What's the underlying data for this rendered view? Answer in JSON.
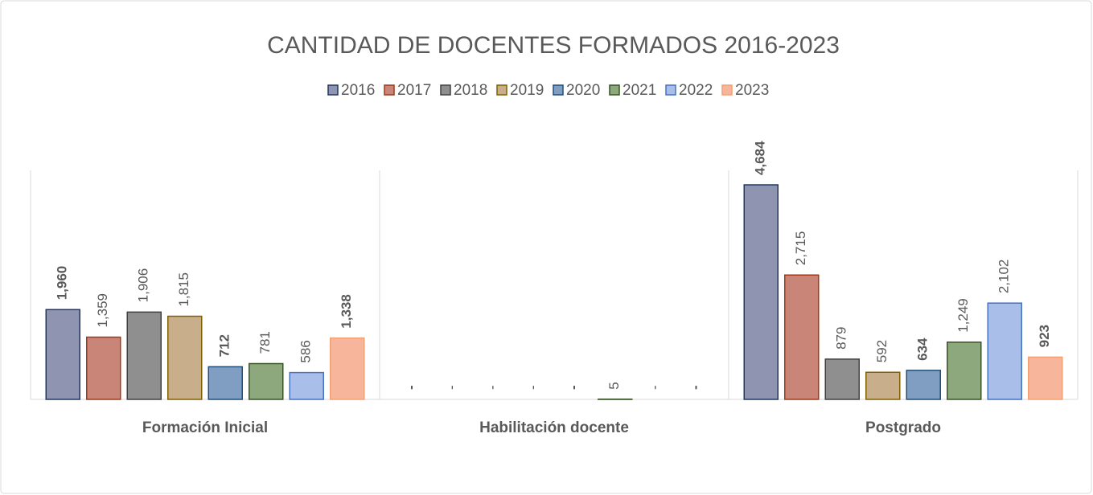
{
  "chart_data": {
    "type": "bar",
    "title": "CANTIDAD DE DOCENTES FORMADOS 2016-2023",
    "categories": [
      "Formación Inicial",
      "Habilitación docente",
      "Postgrado"
    ],
    "series": [
      {
        "name": "2016",
        "color": "#8f95b0",
        "edge": "#1f3864",
        "label_weight": "bold",
        "values": [
          1960,
          0,
          4684
        ],
        "value_labels": [
          "1,960",
          "-",
          "4,684"
        ]
      },
      {
        "name": "2017",
        "color": "#c98577",
        "edge": "#a0381a",
        "label_weight": "normal",
        "values": [
          1359,
          0,
          2715
        ],
        "value_labels": [
          "1,359",
          "-",
          "2,715"
        ]
      },
      {
        "name": "2018",
        "color": "#8f8f8f",
        "edge": "#404040",
        "label_weight": "normal",
        "values": [
          1906,
          0,
          879
        ],
        "value_labels": [
          "1,906",
          "-",
          "879"
        ]
      },
      {
        "name": "2019",
        "color": "#c9ae8c",
        "edge": "#7f6000",
        "label_weight": "normal",
        "values": [
          1815,
          0,
          592
        ],
        "value_labels": [
          "1,815",
          "-",
          "592"
        ]
      },
      {
        "name": "2020",
        "color": "#7f9ec2",
        "edge": "#1f4e79",
        "label_weight": "bold",
        "values": [
          712,
          0,
          634
        ],
        "value_labels": [
          "712",
          "-",
          "634"
        ]
      },
      {
        "name": "2021",
        "color": "#8ca87c",
        "edge": "#375623",
        "label_weight": "normal",
        "values": [
          781,
          5,
          1249
        ],
        "value_labels": [
          "781",
          "5",
          "1,249"
        ]
      },
      {
        "name": "2022",
        "color": "#aabeea",
        "edge": "#4472c4",
        "label_weight": "normal",
        "values": [
          586,
          0,
          2102
        ],
        "value_labels": [
          "586",
          "-",
          "2,102"
        ]
      },
      {
        "name": "2023",
        "color": "#f7b69b",
        "edge": "#f4a070",
        "label_weight": "bold",
        "values": [
          1338,
          0,
          923
        ],
        "value_labels": [
          "1,338",
          "-",
          "923"
        ]
      }
    ],
    "legend": "top"
  }
}
